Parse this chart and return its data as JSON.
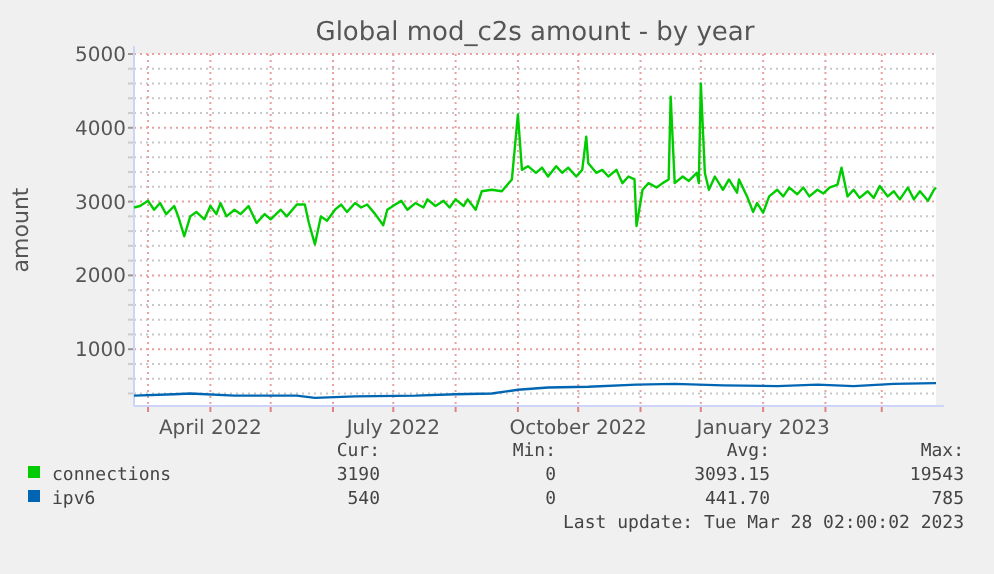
{
  "chart_data": {
    "type": "line",
    "title": "Global mod_c2s amount - by year",
    "ylabel": "amount",
    "xlim": [
      "2022-02-22",
      "2023-03-28"
    ],
    "ylim": [
      230,
      5000
    ],
    "xticks": [
      {
        "value": "2022-03-01",
        "label": null
      },
      {
        "value": "2022-04-01",
        "label": "April 2022"
      },
      {
        "value": "2022-05-01",
        "label": null
      },
      {
        "value": "2022-06-01",
        "label": null
      },
      {
        "value": "2022-07-01",
        "label": "July 2022"
      },
      {
        "value": "2022-08-01",
        "label": null
      },
      {
        "value": "2022-09-01",
        "label": null
      },
      {
        "value": "2022-10-01",
        "label": "October 2022"
      },
      {
        "value": "2022-11-01",
        "label": null
      },
      {
        "value": "2022-12-01",
        "label": null
      },
      {
        "value": "2023-01-01",
        "label": "January 2023"
      },
      {
        "value": "2023-02-01",
        "label": null
      },
      {
        "value": "2023-03-01",
        "label": null
      }
    ],
    "yticks": [
      {
        "value": 400,
        "label": null
      },
      {
        "value": 600,
        "label": null
      },
      {
        "value": 800,
        "label": null
      },
      1000,
      {
        "value": 1200,
        "label": null
      },
      {
        "value": 1400,
        "label": null
      },
      {
        "value": 1600,
        "label": null
      },
      {
        "value": 1800,
        "label": null
      },
      2000,
      {
        "value": 2200,
        "label": null
      },
      {
        "value": 2400,
        "label": null
      },
      {
        "value": 2600,
        "label": null
      },
      {
        "value": 2800,
        "label": null
      },
      3000,
      {
        "value": 3200,
        "label": null
      },
      {
        "value": 3400,
        "label": null
      },
      {
        "value": 3600,
        "label": null
      },
      {
        "value": 3800,
        "label": null
      },
      4000,
      {
        "value": 4200,
        "label": null
      },
      {
        "value": 4400,
        "label": null
      },
      {
        "value": 4600,
        "label": null
      },
      {
        "value": 4800,
        "label": null
      },
      5000
    ],
    "grid": true,
    "legend": "bottom",
    "line_style": "solid",
    "marker": "none",
    "series": [
      {
        "name": "connections",
        "color": "#00cc00",
        "x": [
          "2022-02-22",
          "2022-02-25",
          "2022-03-01",
          "2022-03-04",
          "2022-03-07",
          "2022-03-10",
          "2022-03-14",
          "2022-03-16",
          "2022-03-19",
          "2022-03-22",
          "2022-03-25",
          "2022-03-29",
          "2022-04-01",
          "2022-04-04",
          "2022-04-06",
          "2022-04-09",
          "2022-04-13",
          "2022-04-16",
          "2022-04-20",
          "2022-04-24",
          "2022-04-28",
          "2022-05-01",
          "2022-05-06",
          "2022-05-09",
          "2022-05-14",
          "2022-05-18",
          "2022-05-20",
          "2022-05-23",
          "2022-05-26",
          "2022-05-29",
          "2022-06-02",
          "2022-06-05",
          "2022-06-08",
          "2022-06-12",
          "2022-06-15",
          "2022-06-18",
          "2022-06-22",
          "2022-06-26",
          "2022-06-28",
          "2022-07-02",
          "2022-07-05",
          "2022-07-08",
          "2022-07-12",
          "2022-07-16",
          "2022-07-18",
          "2022-07-22",
          "2022-07-26",
          "2022-07-29",
          "2022-08-01",
          "2022-08-05",
          "2022-08-07",
          "2022-08-11",
          "2022-08-14",
          "2022-08-19",
          "2022-08-24",
          "2022-08-29",
          "2022-09-01",
          "2022-09-03",
          "2022-09-06",
          "2022-09-10",
          "2022-09-13",
          "2022-09-16",
          "2022-09-20",
          "2022-09-23",
          "2022-09-26",
          "2022-09-30",
          "2022-10-03",
          "2022-10-05",
          "2022-10-06",
          "2022-10-10",
          "2022-10-13",
          "2022-10-16",
          "2022-10-20",
          "2022-10-23",
          "2022-10-26",
          "2022-10-29",
          "2022-10-30",
          "2022-11-02",
          "2022-11-05",
          "2022-11-09",
          "2022-11-12",
          "2022-11-15",
          "2022-11-16",
          "2022-11-18",
          "2022-11-22",
          "2022-11-25",
          "2022-11-29",
          "2022-11-30",
          "2022-12-01",
          "2022-12-03",
          "2022-12-05",
          "2022-12-08",
          "2022-12-12",
          "2022-12-15",
          "2022-12-19",
          "2022-12-20",
          "2022-12-24",
          "2022-12-27",
          "2022-12-29",
          "2023-01-01",
          "2023-01-04",
          "2023-01-08",
          "2023-01-11",
          "2023-01-14",
          "2023-01-18",
          "2023-01-21",
          "2023-01-24",
          "2023-01-28",
          "2023-01-31",
          "2023-02-03",
          "2023-02-07",
          "2023-02-09",
          "2023-02-12",
          "2023-02-15",
          "2023-02-18",
          "2023-02-22",
          "2023-02-25",
          "2023-02-28",
          "2023-03-04",
          "2023-03-07",
          "2023-03-10",
          "2023-03-14",
          "2023-03-17",
          "2023-03-20",
          "2023-03-24",
          "2023-03-27",
          "2023-03-28"
        ],
        "values": [
          2920,
          2940,
          3010,
          2890,
          2980,
          2830,
          2940,
          2800,
          2530,
          2800,
          2860,
          2760,
          2940,
          2830,
          2980,
          2800,
          2890,
          2830,
          2940,
          2710,
          2830,
          2760,
          2890,
          2800,
          2960,
          2960,
          2710,
          2420,
          2800,
          2740,
          2890,
          2960,
          2860,
          2980,
          2920,
          2960,
          2830,
          2680,
          2890,
          2960,
          3010,
          2890,
          2980,
          2920,
          3030,
          2940,
          3010,
          2920,
          3030,
          2940,
          3030,
          2890,
          3140,
          3160,
          3140,
          3300,
          4180,
          3430,
          3480,
          3390,
          3460,
          3340,
          3480,
          3390,
          3460,
          3340,
          3430,
          3880,
          3520,
          3390,
          3430,
          3340,
          3430,
          3250,
          3340,
          3300,
          2670,
          3160,
          3250,
          3190,
          3250,
          3300,
          4420,
          3250,
          3340,
          3280,
          3390,
          3250,
          4600,
          3390,
          3160,
          3340,
          3160,
          3300,
          3120,
          3300,
          3070,
          2860,
          2980,
          2850,
          3070,
          3160,
          3070,
          3190,
          3100,
          3190,
          3070,
          3160,
          3110,
          3190,
          3230,
          3460,
          3070,
          3160,
          3050,
          3140,
          3050,
          3210,
          3070,
          3140,
          3030,
          3190,
          3030,
          3140,
          3010,
          3160,
          3190
        ]
      },
      {
        "name": "ipv6",
        "color": "#0066b3",
        "x": [
          "2022-02-22",
          "2022-03-14",
          "2022-03-22",
          "2022-04-13",
          "2022-05-14",
          "2022-05-23",
          "2022-06-12",
          "2022-07-12",
          "2022-08-01",
          "2022-08-19",
          "2022-09-01",
          "2022-09-16",
          "2022-10-06",
          "2022-10-30",
          "2022-11-18",
          "2022-12-12",
          "2023-01-08",
          "2023-01-28",
          "2023-02-15",
          "2023-03-07",
          "2023-03-28"
        ],
        "values": [
          370,
          390,
          400,
          370,
          370,
          340,
          360,
          370,
          390,
          400,
          450,
          480,
          490,
          520,
          530,
          510,
          500,
          520,
          500,
          530,
          540
        ]
      }
    ],
    "annotations": [
      "Cur:",
      "Min:",
      "Avg:",
      "Max:",
      "3190",
      "0",
      "3093.15",
      "19543",
      "540",
      "0",
      "441.70",
      "785",
      "Last update: Tue Mar 28 02:00:02 2023"
    ]
  }
}
